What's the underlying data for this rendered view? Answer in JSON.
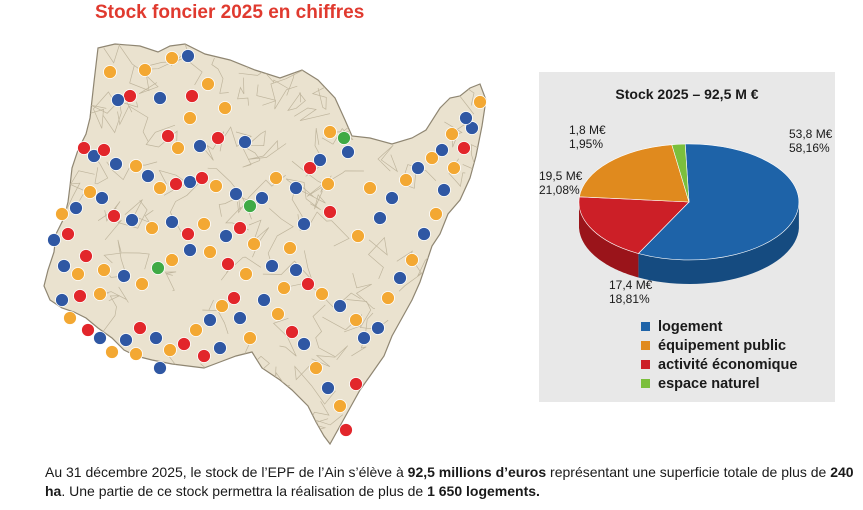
{
  "page": {
    "title": "Stock foncier 2025 en chiffres"
  },
  "colors": {
    "map_fill": "#eae2cf",
    "commune_lines": "#bfb59d",
    "logement": "#2f57a3",
    "equipement_public": "#f3a833",
    "activite_economique": "#e2262b",
    "espace_naturel": "#3faa45"
  },
  "chart_data": {
    "type": "pie",
    "title": "Stock 2025 – 92,5 M €",
    "slices": [
      {
        "name": "logement",
        "value": 53.8,
        "value_label": "53,8 M€",
        "percent_label": "58,16%",
        "color": "#1e63a8",
        "dark": "#154b80"
      },
      {
        "name": "activité économique",
        "value": 17.4,
        "value_label": "17,4 M€",
        "percent_label": "18,81%",
        "color": "#cc1f27",
        "dark": "#9a141a"
      },
      {
        "name": "équipement public",
        "value": 19.5,
        "value_label": "19,5 M€",
        "percent_label": "21,08%",
        "color": "#e08a1e",
        "dark": "#b06a12"
      },
      {
        "name": "espace naturel",
        "value": 1.8,
        "value_label": "1,8 M€",
        "percent_label": "1,95%",
        "color": "#7bbf3c",
        "dark": "#5c9629"
      }
    ],
    "legend": [
      {
        "label": "logement",
        "color": "#1e63a8"
      },
      {
        "label": "équipement public",
        "color": "#e08a1e"
      },
      {
        "label": "activité économique",
        "color": "#cc1f27"
      },
      {
        "label": "espace naturel",
        "color": "#7bbf3c"
      }
    ],
    "legend_position": "bottom"
  },
  "footer": {
    "t1": "Au 31 décembre 2025, le stock de l’EPF de l’Ain s’élève à ",
    "b1": "92,5 millions d’euros",
    "t2": " représentant une superficie totale de plus de ",
    "b2": "240 ha",
    "t3": ". Une partie de ce stock permettra la réalisation de plus de ",
    "b3": "1 650 logements."
  }
}
